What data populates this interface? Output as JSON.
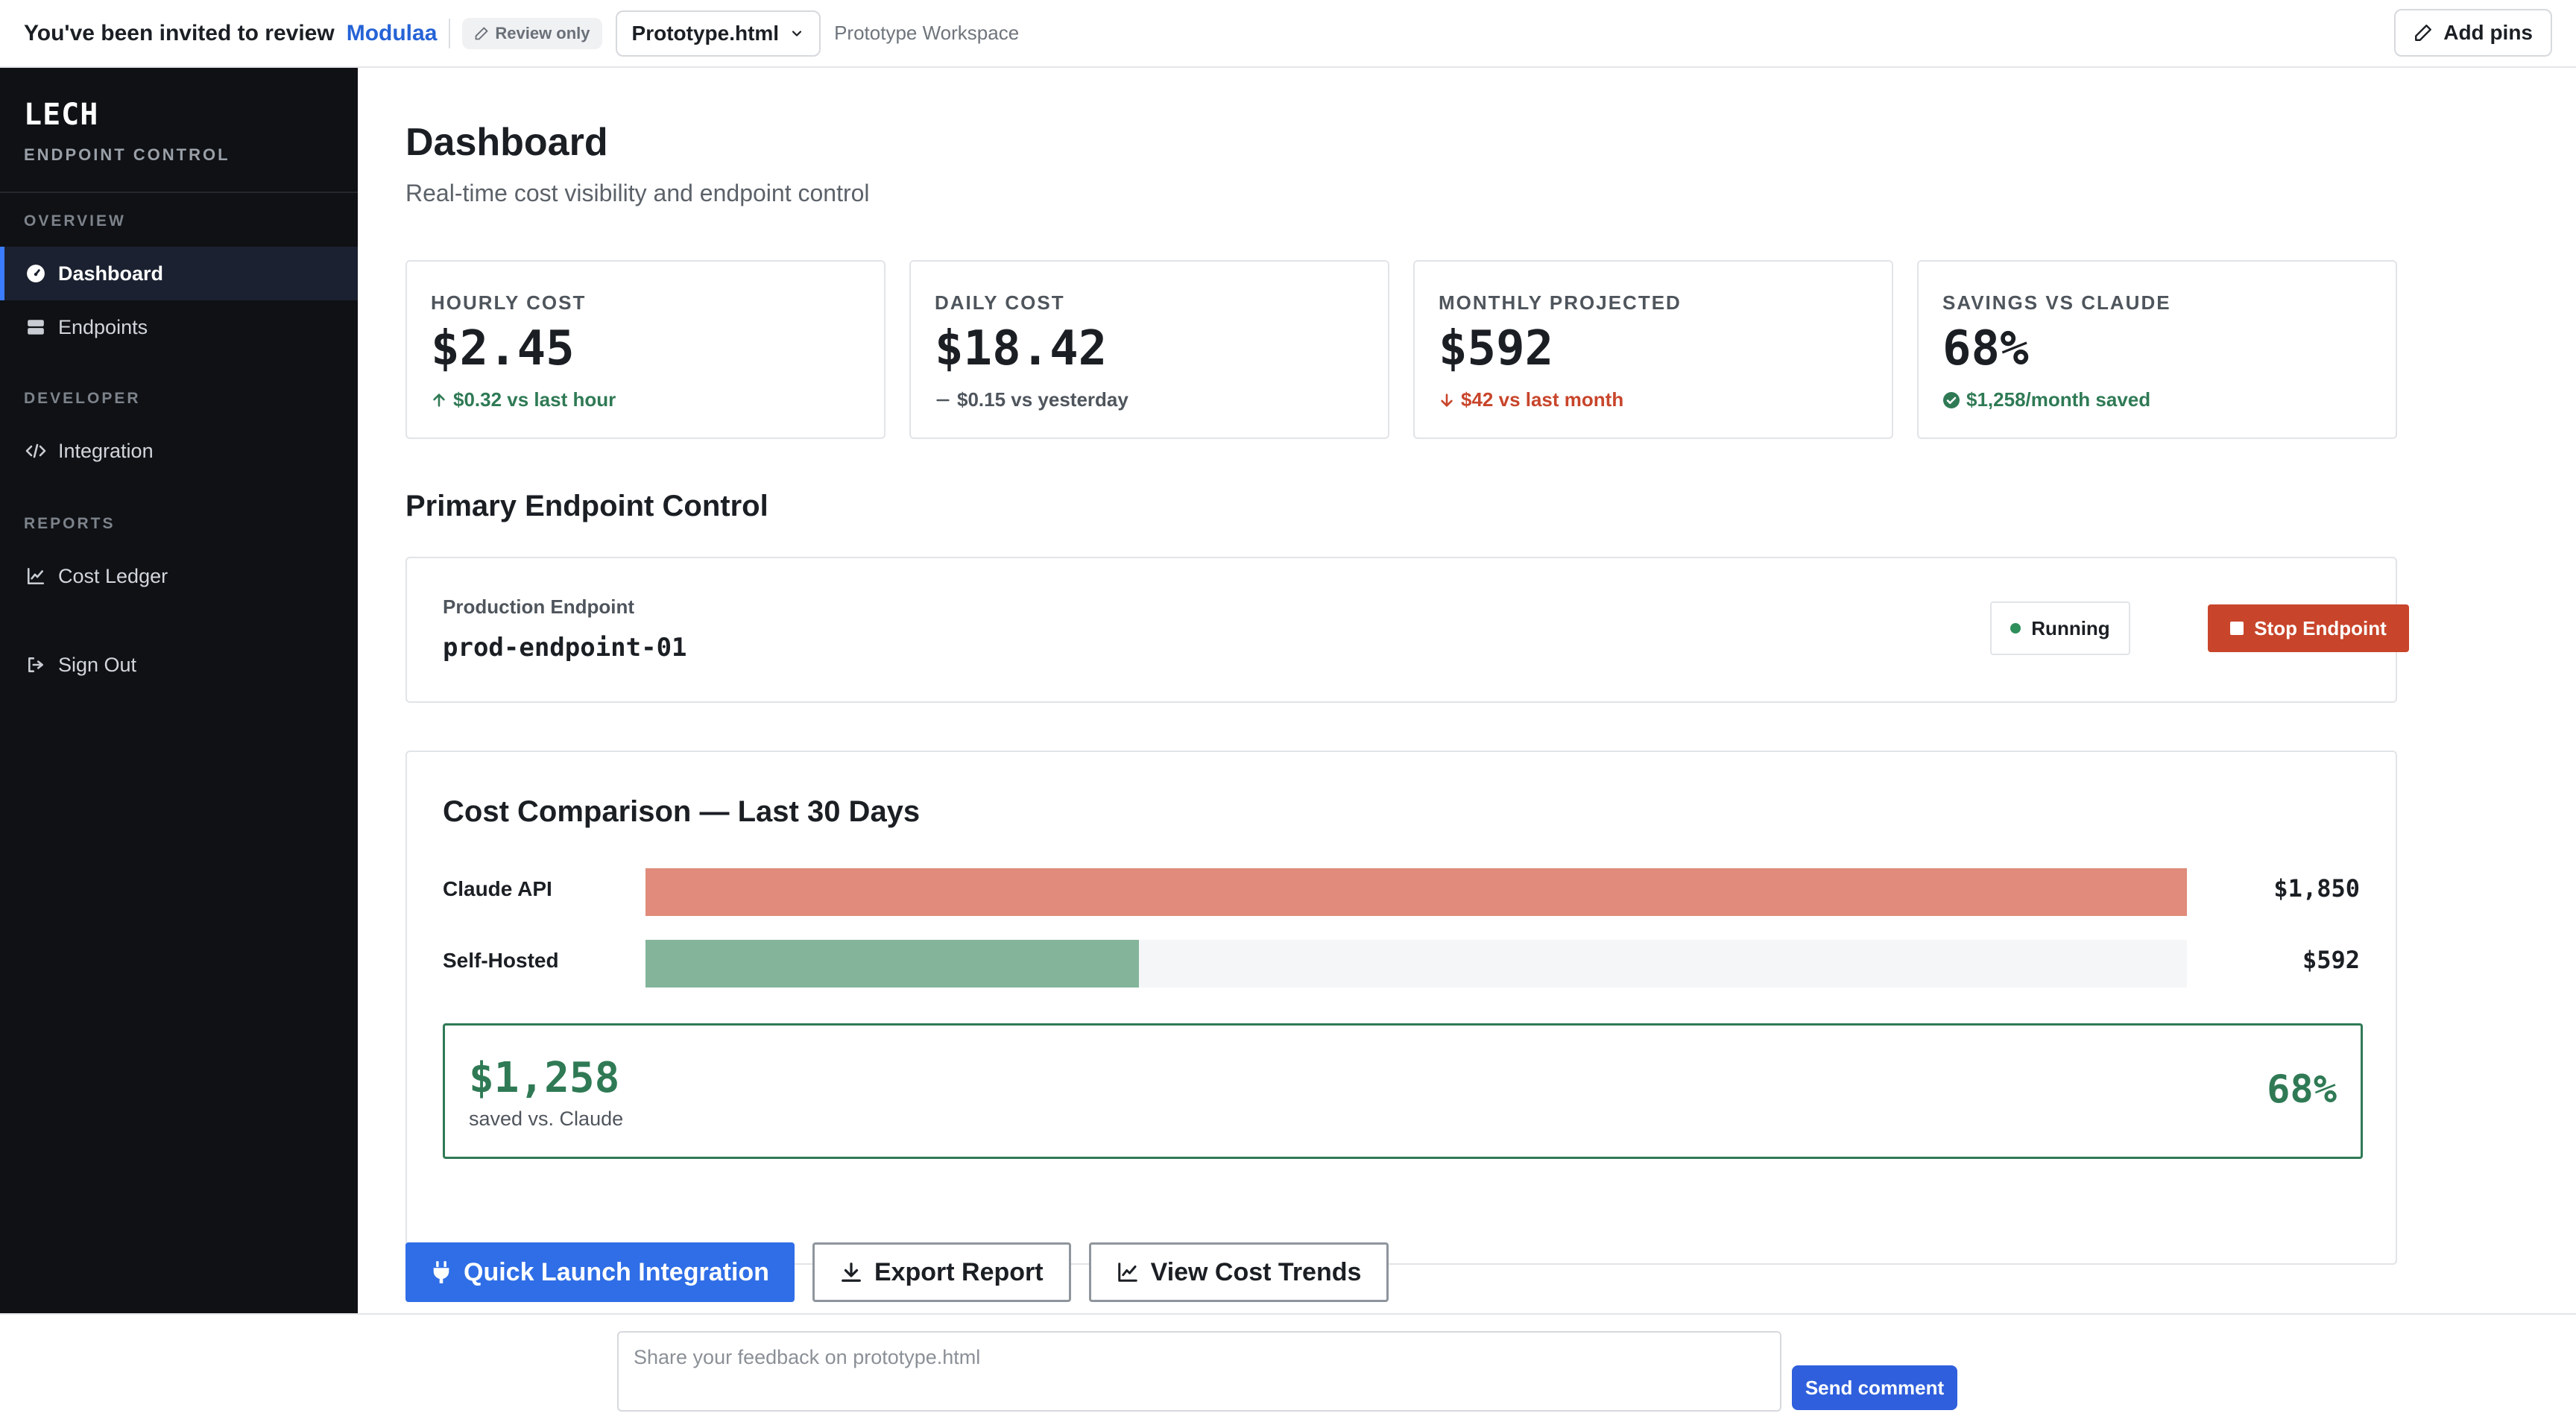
{
  "topbar": {
    "invite_text": "You've been invited to review",
    "brand": "Modulaa",
    "review_badge": "Review only",
    "file_name": "Prototype.html",
    "workspace": "Prototype Workspace",
    "add_pins": "Add pins"
  },
  "sidebar": {
    "logo": "LECH",
    "logo_sub": "ENDPOINT CONTROL",
    "sections": {
      "overview": "OVERVIEW",
      "developer": "DEVELOPER",
      "reports": "REPORTS"
    },
    "items": {
      "dashboard": "Dashboard",
      "endpoints": "Endpoints",
      "integration": "Integration",
      "cost_ledger": "Cost Ledger",
      "sign_out": "Sign Out"
    }
  },
  "page": {
    "title": "Dashboard",
    "subtitle": "Real-time cost visibility and endpoint control"
  },
  "kpis": [
    {
      "label": "HOURLY COST",
      "value": "$2.45",
      "delta": "$0.32 vs last hour",
      "trend": "up",
      "color": "#2f7a55"
    },
    {
      "label": "DAILY COST",
      "value": "$18.42",
      "delta": "$0.15 vs yesterday",
      "trend": "flat",
      "color": "#4f555c"
    },
    {
      "label": "MONTHLY PROJECTED",
      "value": "$592",
      "delta": "$42 vs last month",
      "trend": "down",
      "color": "#c8452b"
    },
    {
      "label": "SAVINGS VS CLAUDE",
      "value": "68%",
      "delta": "$1,258/month saved",
      "trend": "check",
      "color": "#2f7a55"
    }
  ],
  "primary": {
    "section_title": "Primary Endpoint Control",
    "endpoint_label": "Production Endpoint",
    "endpoint_name": "prod-endpoint-01",
    "status": "Running",
    "stop_label": "Stop Endpoint"
  },
  "comparison": {
    "title": "Cost Comparison — Last 30 Days",
    "rows": [
      {
        "label": "Claude API",
        "value": "$1,850",
        "amount": 1850,
        "color": "#e08b7b"
      },
      {
        "label": "Self-Hosted",
        "value": "$592",
        "amount": 592,
        "color": "#84b59b"
      }
    ],
    "savings_amount": "$1,258",
    "savings_label": "saved vs. Claude",
    "savings_pct": "68%"
  },
  "actions": {
    "quick_launch": "Quick Launch Integration",
    "export": "Export Report",
    "trends": "View Cost Trends"
  },
  "feedback": {
    "placeholder": "Share your feedback on prototype.html",
    "send": "Send comment"
  }
}
